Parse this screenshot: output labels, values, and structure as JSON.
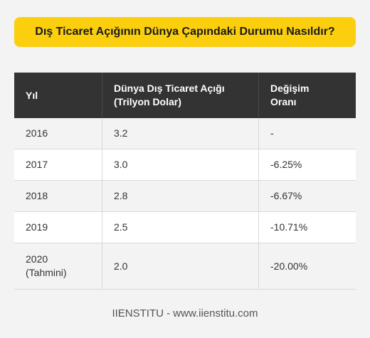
{
  "title": "Dış Ticaret Açığının Dünya Çapındaki Durumu Nasıldır?",
  "table": {
    "headers": {
      "year": "Yıl",
      "deficit_line1": "Dünya Dış Ticaret Açığı",
      "deficit_line2": "(Trilyon Dolar)",
      "change_line1": "Değişim",
      "change_line2": "Oranı"
    },
    "rows": [
      {
        "year": "2016",
        "year_note": "",
        "deficit": "3.2",
        "change": "-"
      },
      {
        "year": "2017",
        "year_note": "",
        "deficit": "3.0",
        "change": "-6.25%"
      },
      {
        "year": "2018",
        "year_note": "",
        "deficit": "2.8",
        "change": "-6.67%"
      },
      {
        "year": "2019",
        "year_note": "",
        "deficit": "2.5",
        "change": "-10.71%"
      },
      {
        "year": "2020",
        "year_note": "(Tahmini)",
        "deficit": "2.0",
        "change": "-20.00%"
      }
    ]
  },
  "footer": "IIENSTITU - www.iienstitu.com",
  "colors": {
    "banner": "#fbcf0e",
    "header_bg": "#333333",
    "page_bg": "#f3f3f3"
  }
}
